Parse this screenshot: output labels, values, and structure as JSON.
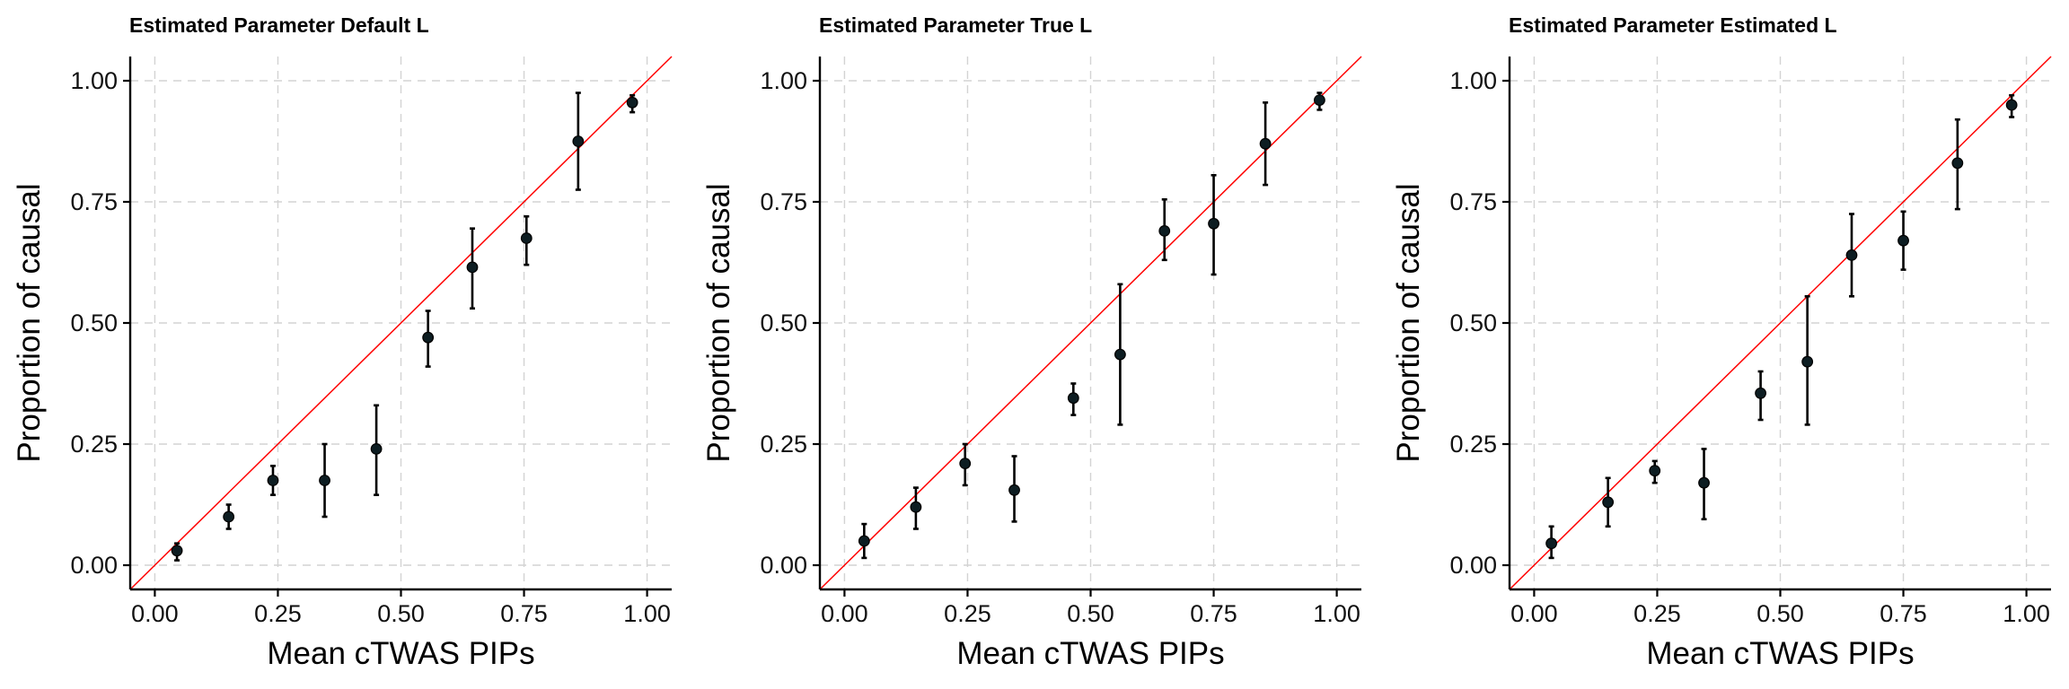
{
  "colors": {
    "reference_line": "#ff0000",
    "point": "#0d1d22",
    "error_bar": "#000000",
    "grid": "#d3d3d3"
  },
  "chart_data": [
    {
      "type": "scatter",
      "title": "Estimated Parameter Default L",
      "xlabel": "Mean cTWAS PIPs",
      "ylabel": "Proportion of causal",
      "xlim": [
        -0.05,
        1.05
      ],
      "ylim": [
        -0.05,
        1.05
      ],
      "xticks": [
        "0.00",
        "0.25",
        "0.50",
        "0.75",
        "1.00"
      ],
      "yticks": [
        "0.00",
        "0.25",
        "0.50",
        "0.75",
        "1.00"
      ],
      "grid": true,
      "reference_line": "y = x",
      "points": [
        {
          "x": 0.045,
          "y": 0.03,
          "lo": 0.01,
          "hi": 0.045
        },
        {
          "x": 0.15,
          "y": 0.1,
          "lo": 0.075,
          "hi": 0.125
        },
        {
          "x": 0.24,
          "y": 0.175,
          "lo": 0.145,
          "hi": 0.205
        },
        {
          "x": 0.345,
          "y": 0.175,
          "lo": 0.1,
          "hi": 0.25
        },
        {
          "x": 0.45,
          "y": 0.24,
          "lo": 0.145,
          "hi": 0.33
        },
        {
          "x": 0.555,
          "y": 0.47,
          "lo": 0.41,
          "hi": 0.525
        },
        {
          "x": 0.645,
          "y": 0.615,
          "lo": 0.53,
          "hi": 0.695
        },
        {
          "x": 0.755,
          "y": 0.675,
          "lo": 0.62,
          "hi": 0.72
        },
        {
          "x": 0.86,
          "y": 0.875,
          "lo": 0.775,
          "hi": 0.975
        },
        {
          "x": 0.97,
          "y": 0.955,
          "lo": 0.935,
          "hi": 0.97
        }
      ]
    },
    {
      "type": "scatter",
      "title": "Estimated Parameter True L",
      "xlabel": "Mean cTWAS PIPs",
      "ylabel": "Proportion of causal",
      "xlim": [
        -0.05,
        1.05
      ],
      "ylim": [
        -0.05,
        1.05
      ],
      "xticks": [
        "0.00",
        "0.25",
        "0.50",
        "0.75",
        "1.00"
      ],
      "yticks": [
        "0.00",
        "0.25",
        "0.50",
        "0.75",
        "1.00"
      ],
      "grid": true,
      "reference_line": "y = x",
      "points": [
        {
          "x": 0.04,
          "y": 0.05,
          "lo": 0.015,
          "hi": 0.085
        },
        {
          "x": 0.145,
          "y": 0.12,
          "lo": 0.075,
          "hi": 0.16
        },
        {
          "x": 0.245,
          "y": 0.21,
          "lo": 0.165,
          "hi": 0.25
        },
        {
          "x": 0.345,
          "y": 0.155,
          "lo": 0.09,
          "hi": 0.225
        },
        {
          "x": 0.465,
          "y": 0.345,
          "lo": 0.31,
          "hi": 0.375
        },
        {
          "x": 0.56,
          "y": 0.435,
          "lo": 0.29,
          "hi": 0.58
        },
        {
          "x": 0.65,
          "y": 0.69,
          "lo": 0.63,
          "hi": 0.755
        },
        {
          "x": 0.75,
          "y": 0.705,
          "lo": 0.6,
          "hi": 0.805
        },
        {
          "x": 0.855,
          "y": 0.87,
          "lo": 0.785,
          "hi": 0.955
        },
        {
          "x": 0.965,
          "y": 0.96,
          "lo": 0.94,
          "hi": 0.975
        }
      ]
    },
    {
      "type": "scatter",
      "title": "Estimated Parameter Estimated L",
      "xlabel": "Mean cTWAS PIPs",
      "ylabel": "Proportion of causal",
      "xlim": [
        -0.05,
        1.05
      ],
      "ylim": [
        -0.05,
        1.05
      ],
      "xticks": [
        "0.00",
        "0.25",
        "0.50",
        "0.75",
        "1.00"
      ],
      "yticks": [
        "0.00",
        "0.25",
        "0.50",
        "0.75",
        "1.00"
      ],
      "grid": true,
      "reference_line": "y = x",
      "points": [
        {
          "x": 0.035,
          "y": 0.045,
          "lo": 0.015,
          "hi": 0.08
        },
        {
          "x": 0.15,
          "y": 0.13,
          "lo": 0.08,
          "hi": 0.18
        },
        {
          "x": 0.245,
          "y": 0.195,
          "lo": 0.17,
          "hi": 0.215
        },
        {
          "x": 0.345,
          "y": 0.17,
          "lo": 0.095,
          "hi": 0.24
        },
        {
          "x": 0.46,
          "y": 0.355,
          "lo": 0.3,
          "hi": 0.4
        },
        {
          "x": 0.555,
          "y": 0.42,
          "lo": 0.29,
          "hi": 0.555
        },
        {
          "x": 0.645,
          "y": 0.64,
          "lo": 0.555,
          "hi": 0.725
        },
        {
          "x": 0.75,
          "y": 0.67,
          "lo": 0.61,
          "hi": 0.73
        },
        {
          "x": 0.86,
          "y": 0.83,
          "lo": 0.735,
          "hi": 0.92
        },
        {
          "x": 0.97,
          "y": 0.95,
          "lo": 0.925,
          "hi": 0.97
        }
      ]
    }
  ]
}
